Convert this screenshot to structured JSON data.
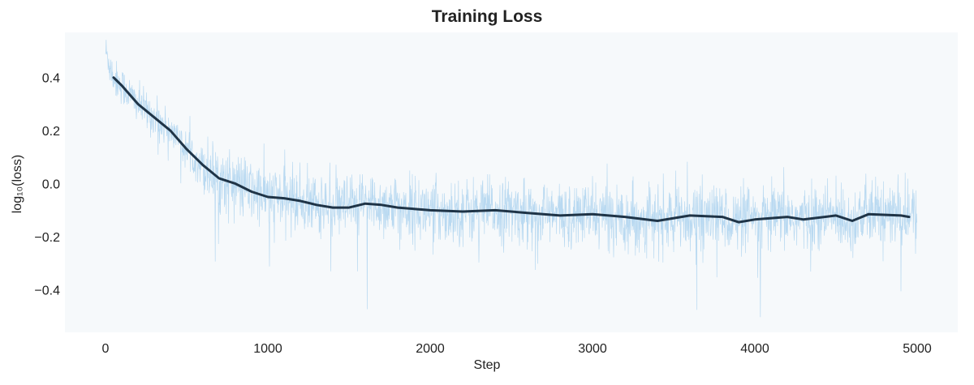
{
  "chart_data": {
    "type": "line",
    "title": "Training Loss",
    "xlabel": "Step",
    "ylabel": "log₁₀(loss)",
    "xlim": [
      -250,
      5250
    ],
    "ylim": [
      -0.56,
      0.57
    ],
    "xticks": [
      0,
      1000,
      2000,
      3000,
      4000,
      5000
    ],
    "xtick_labels": [
      "0",
      "1000",
      "2000",
      "3000",
      "4000",
      "5000"
    ],
    "yticks": [
      0.4,
      0.2,
      0.0,
      -0.2,
      -0.4
    ],
    "ytick_labels": [
      "0.4",
      "0.2",
      "0.0",
      "−0.2",
      "−0.4"
    ],
    "grid": false,
    "background": "#f6f9fb",
    "series": [
      {
        "role": "raw",
        "color": "#aed3ee",
        "x_range": [
          0,
          4999
        ],
        "noise_std": 0.06,
        "start_value": 0.5
      },
      {
        "role": "smoothed",
        "color": "#1f3447",
        "x": [
          50,
          100,
          200,
          300,
          400,
          500,
          600,
          700,
          800,
          900,
          1000,
          1100,
          1200,
          1300,
          1400,
          1500,
          1600,
          1700,
          1800,
          1900,
          2000,
          2200,
          2400,
          2600,
          2800,
          3000,
          3200,
          3400,
          3600,
          3800,
          3900,
          4000,
          4200,
          4300,
          4500,
          4600,
          4700,
          4900,
          4950
        ],
        "y": [
          0.4,
          0.37,
          0.3,
          0.25,
          0.2,
          0.13,
          0.07,
          0.02,
          0.0,
          -0.03,
          -0.05,
          -0.055,
          -0.065,
          -0.08,
          -0.09,
          -0.09,
          -0.075,
          -0.08,
          -0.09,
          -0.095,
          -0.1,
          -0.105,
          -0.1,
          -0.11,
          -0.12,
          -0.115,
          -0.125,
          -0.14,
          -0.12,
          -0.125,
          -0.145,
          -0.135,
          -0.125,
          -0.135,
          -0.12,
          -0.14,
          -0.115,
          -0.12,
          -0.125
        ]
      }
    ]
  }
}
